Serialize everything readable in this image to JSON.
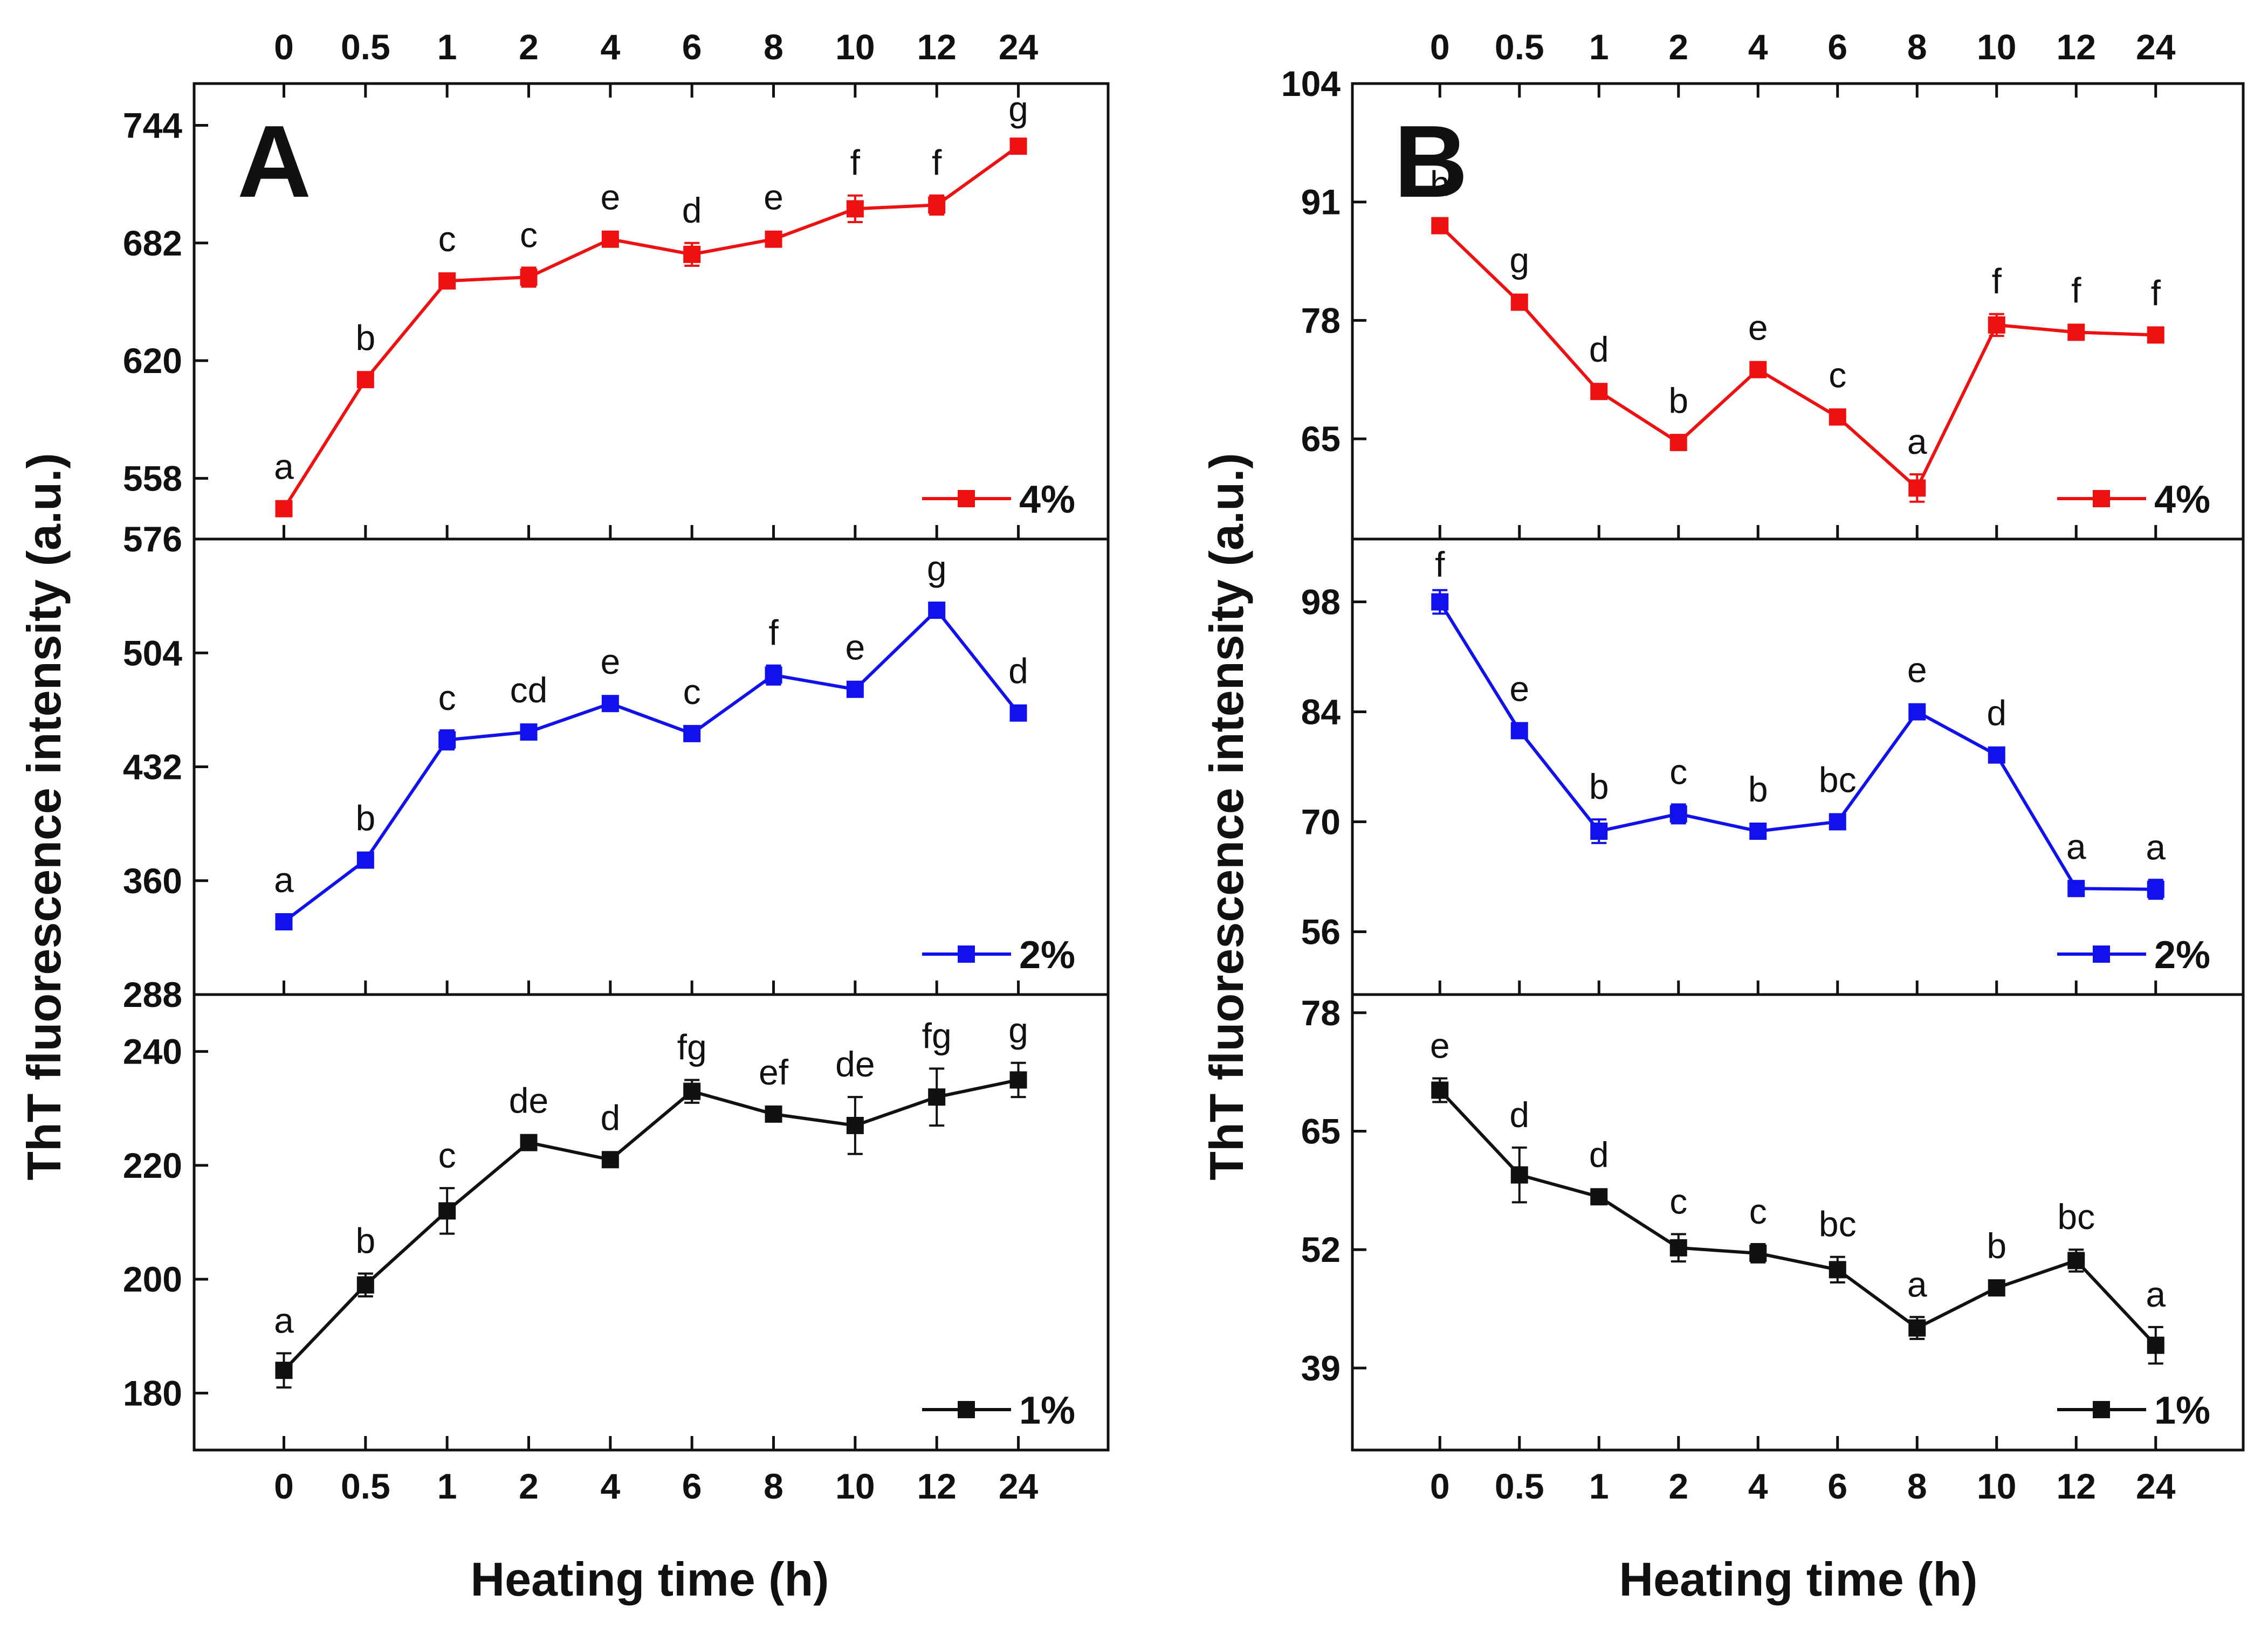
{
  "figure": {
    "xlabel": "Heating time (h)",
    "ylabel": "ThT fluorescence intensity (a.u.)",
    "x_categories": [
      "0",
      "0.5",
      "1",
      "2",
      "4",
      "6",
      "8",
      "10",
      "12",
      "24"
    ]
  },
  "chart_data": [
    {
      "type": "line",
      "panel": "A",
      "title": "",
      "xlabel": "Heating time (h)",
      "ylabel": "ThT fluorescence intensity (a.u.)",
      "categories": [
        "0",
        "0.5",
        "1",
        "2",
        "4",
        "6",
        "8",
        "10",
        "12",
        "24"
      ],
      "subplots": [
        {
          "series_name": "4%",
          "color": "#ee1111",
          "ylim": [
            526,
            766
          ],
          "yticks": [
            558,
            620,
            682,
            744
          ],
          "bottom_label": "576",
          "values": [
            542,
            610,
            662,
            664,
            684,
            676,
            684,
            700,
            702,
            733
          ],
          "errors": [
            2,
            2,
            3,
            5,
            2,
            6,
            3,
            7,
            5,
            2
          ],
          "letters": [
            "a",
            "b",
            "c",
            "c",
            "e",
            "d",
            "e",
            "f",
            "f",
            "g"
          ]
        },
        {
          "series_name": "2%",
          "color": "#1111ee",
          "ylim": [
            288,
            576
          ],
          "yticks": [
            360,
            432,
            504
          ],
          "bottom_label": "288",
          "values": [
            334,
            373,
            449,
            454,
            472,
            453,
            490,
            481,
            531,
            466
          ],
          "errors": [
            3,
            3,
            6,
            4,
            3,
            4,
            6,
            3,
            3,
            3
          ],
          "letters": [
            "a",
            "b",
            "c",
            "cd",
            "e",
            "c",
            "f",
            "e",
            "g",
            "d"
          ]
        },
        {
          "series_name": "1%",
          "color": "#111111",
          "ylim": [
            170,
            250
          ],
          "yticks": [
            180,
            200,
            220,
            240
          ],
          "values": [
            184,
            199,
            212,
            224,
            221,
            233,
            229,
            227,
            232,
            235
          ],
          "errors": [
            3,
            2,
            4,
            0.8,
            0.8,
            2,
            1,
            5,
            5,
            3
          ],
          "letters": [
            "a",
            "b",
            "c",
            "de",
            "d",
            "fg",
            "ef",
            "de",
            "fg",
            "g"
          ]
        }
      ]
    },
    {
      "type": "line",
      "panel": "B",
      "title": "",
      "xlabel": "Heating time (h)",
      "ylabel": "ThT fluorescence intensity (a.u.)",
      "categories": [
        "0",
        "0.5",
        "1",
        "2",
        "4",
        "6",
        "8",
        "10",
        "12",
        "24"
      ],
      "subplots": [
        {
          "series_name": "4%",
          "color": "#ee1111",
          "ylim": [
            54,
            104
          ],
          "yticks": [
            65,
            78,
            91,
            104
          ],
          "values": [
            88.4,
            80,
            70.2,
            64.6,
            72.6,
            67.4,
            59.6,
            77.5,
            76.7,
            76.4
          ],
          "errors": [
            0.3,
            0.4,
            0.4,
            0.4,
            0.5,
            0.4,
            1.5,
            1.2,
            0.5,
            0.3
          ],
          "letters": [
            "h",
            "g",
            "d",
            "b",
            "e",
            "c",
            "a",
            "f",
            "f",
            "f"
          ]
        },
        {
          "series_name": "2%",
          "color": "#1111ee",
          "ylim": [
            48,
            106
          ],
          "yticks": [
            56,
            70,
            84,
            98
          ],
          "values": [
            98,
            81.6,
            68.8,
            71,
            68.8,
            70,
            84,
            78.5,
            61.5,
            61.4
          ],
          "errors": [
            1.5,
            0.5,
            1.5,
            1.2,
            0.5,
            0.5,
            0.5,
            0.5,
            0.5,
            1.2
          ],
          "letters": [
            "f",
            "e",
            "b",
            "c",
            "b",
            "bc",
            "e",
            "d",
            "a",
            "a"
          ]
        },
        {
          "series_name": "1%",
          "color": "#111111",
          "ylim": [
            30,
            80
          ],
          "yticks": [
            39,
            52,
            65,
            78
          ],
          "values": [
            69.5,
            60.2,
            57.8,
            52.2,
            51.6,
            49.8,
            43.4,
            47.8,
            50.8,
            41.5
          ],
          "errors": [
            1.3,
            3,
            0.5,
            1.5,
            1,
            1.4,
            1.2,
            0.5,
            1.2,
            2
          ],
          "letters": [
            "e",
            "d",
            "d",
            "c",
            "c",
            "bc",
            "a",
            "b",
            "bc",
            "a"
          ]
        }
      ]
    }
  ]
}
